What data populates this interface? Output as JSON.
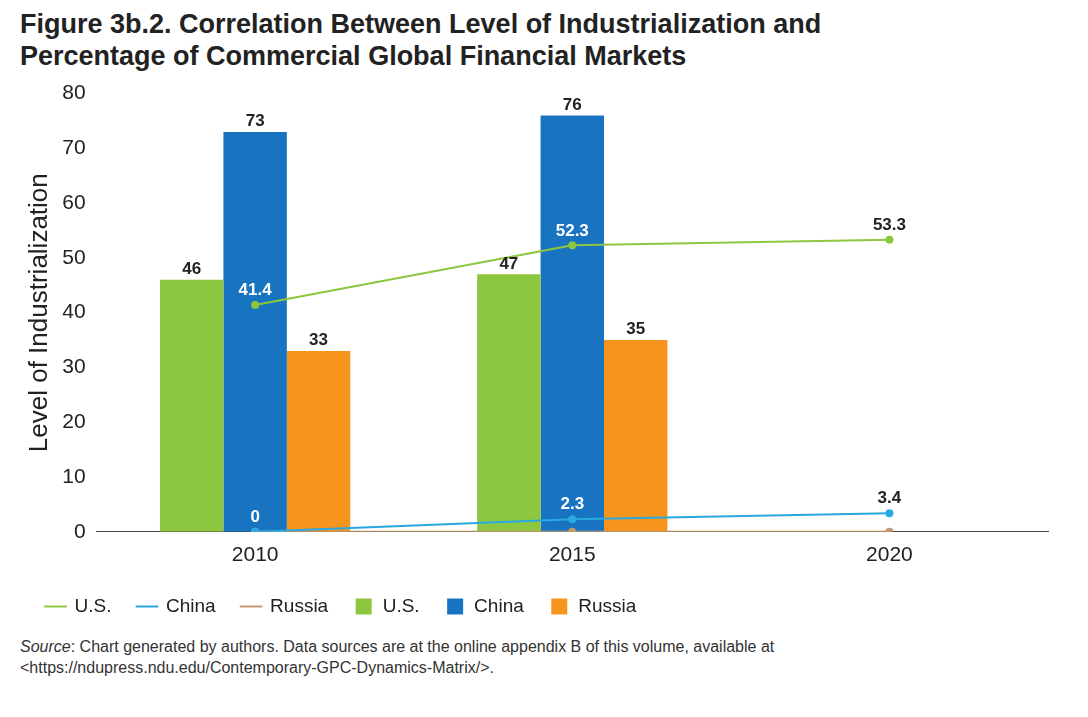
{
  "chart_data": {
    "type": "bar",
    "title": "Figure 3b.2. Correlation Between Level of Industrialization and Percentage of Commercial Global Financial Markets",
    "y_label": "Level of Industrialization",
    "source": "Source: Chart generated by authors. Data sources are at the online appendix B of this volume, available at <https://ndupress.ndu.edu/Contemporary-GPC-Dynamics-Matrix/>.",
    "categories": [
      "2010",
      "2015",
      "2020"
    ],
    "series": [
      {
        "name": "U.S.",
        "type": "line",
        "color": "#8dc63f",
        "marker": "circle",
        "data_labels": true,
        "values": [
          41.4,
          52.3,
          53.3
        ]
      },
      {
        "name": "China",
        "type": "line",
        "color": "#29a9e0",
        "marker": "circle",
        "data_labels": true,
        "values": [
          0,
          2.3,
          3.4
        ]
      },
      {
        "name": "Russia",
        "type": "line",
        "color": "#c49a6c",
        "marker": "circle",
        "data_labels": false,
        "values": [
          0,
          0,
          0
        ]
      },
      {
        "name": "U.S.",
        "type": "bar",
        "color": "#8dc63f",
        "data_labels": true,
        "values": [
          46,
          47,
          null
        ]
      },
      {
        "name": "China",
        "type": "bar",
        "color": "#1874c1",
        "data_labels": true,
        "values": [
          73,
          76,
          null
        ]
      },
      {
        "name": "Russia",
        "type": "bar",
        "color": "#f7941d",
        "data_labels": true,
        "values": [
          33,
          35,
          null
        ]
      }
    ],
    "ylim": [
      0,
      80
    ],
    "yticks": [
      0,
      10,
      20,
      30,
      40,
      50,
      60,
      70,
      80
    ],
    "grid": false,
    "legend": "bottom left"
  }
}
